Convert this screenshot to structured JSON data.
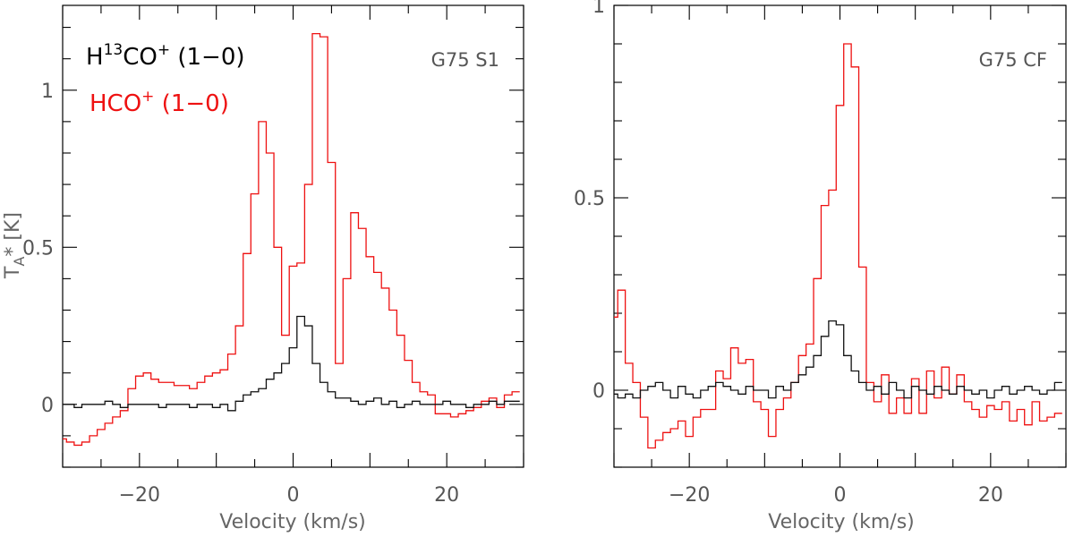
{
  "chart_data": [
    {
      "type": "line",
      "panel_label": "G75 S1",
      "xlabel": "Velocity (km/s)",
      "ylabel": "T",
      "ylabel_sub": "A",
      "ylabel_suffix": "* [K]",
      "xlim": [
        -30,
        30
      ],
      "ylim": [
        -0.2,
        1.27
      ],
      "xticks_major": [
        -20,
        0,
        20
      ],
      "xtick_labels": [
        "−20",
        "0",
        "20"
      ],
      "yticks_major": [
        0,
        0.5,
        1
      ],
      "ytick_labels": [
        "0",
        "0.5",
        "1"
      ],
      "legend": {
        "black_base": "H",
        "black_sup": "13",
        "black_mid": "CO",
        "black_sup2": "+",
        "black_tail": " (1−0)",
        "red_base": "HCO",
        "red_sup": "+",
        "red_tail": " (1−0)"
      },
      "series": [
        {
          "name": "HCO+ (1-0)",
          "color": "#ee1111",
          "style": "step",
          "x": [
            -30,
            -29,
            -28,
            -27,
            -26,
            -25,
            -24,
            -23,
            -22,
            -21,
            -20,
            -19,
            -18,
            -17,
            -16,
            -15,
            -14,
            -13,
            -12,
            -11,
            -10,
            -9,
            -8,
            -7,
            -6,
            -5,
            -4,
            -3,
            -2,
            -1,
            0,
            1,
            2,
            3,
            4,
            5,
            6,
            7,
            8,
            9,
            10,
            11,
            12,
            13,
            14,
            15,
            16,
            17,
            18,
            19,
            20,
            21,
            22,
            23,
            24,
            25,
            26,
            27,
            28,
            29
          ],
          "values": [
            -0.11,
            -0.12,
            -0.13,
            -0.12,
            -0.1,
            -0.08,
            -0.06,
            -0.04,
            -0.02,
            0.05,
            0.09,
            0.1,
            0.08,
            0.07,
            0.07,
            0.06,
            0.06,
            0.05,
            0.07,
            0.09,
            0.1,
            0.11,
            0.16,
            0.25,
            0.48,
            0.67,
            0.9,
            0.8,
            0.5,
            0.22,
            0.44,
            0.45,
            0.7,
            1.18,
            1.17,
            0.77,
            0.13,
            0.4,
            0.61,
            0.56,
            0.47,
            0.42,
            0.37,
            0.3,
            0.22,
            0.14,
            0.07,
            0.04,
            0.03,
            -0.03,
            -0.03,
            -0.04,
            -0.03,
            -0.02,
            -0.01,
            0.01,
            0.02,
            -0.01,
            0.03,
            0.04
          ]
        },
        {
          "name": "H13CO+ (1-0)",
          "color": "#111111",
          "style": "step",
          "x": [
            -30,
            -29,
            -28,
            -27,
            -26,
            -25,
            -24,
            -23,
            -22,
            -21,
            -20,
            -19,
            -18,
            -17,
            -16,
            -15,
            -14,
            -13,
            -12,
            -11,
            -10,
            -9,
            -8,
            -7,
            -6,
            -5,
            -4,
            -3,
            -2,
            -1,
            0,
            1,
            2,
            3,
            4,
            5,
            6,
            7,
            8,
            9,
            10,
            11,
            12,
            13,
            14,
            15,
            16,
            17,
            18,
            19,
            20,
            21,
            22,
            23,
            24,
            25,
            26,
            27,
            28,
            29
          ],
          "values": [
            0.0,
            0.0,
            -0.01,
            0.0,
            0.0,
            0.0,
            0.01,
            0.0,
            -0.01,
            0.0,
            0.0,
            0.0,
            0.0,
            -0.01,
            0.0,
            0.0,
            0.0,
            -0.01,
            0.0,
            0.0,
            -0.01,
            0.0,
            -0.02,
            0.01,
            0.03,
            0.04,
            0.05,
            0.08,
            0.1,
            0.13,
            0.18,
            0.28,
            0.25,
            0.13,
            0.07,
            0.04,
            0.02,
            0.02,
            0.01,
            0.0,
            0.01,
            0.02,
            0.0,
            0.01,
            -0.01,
            0.0,
            0.01,
            0.0,
            0.0,
            0.0,
            0.01,
            0.0,
            0.0,
            -0.01,
            0.0,
            0.0,
            0.01,
            0.0,
            0.01,
            0.01
          ]
        }
      ]
    },
    {
      "type": "line",
      "panel_label": "G75 CF",
      "xlabel": "Velocity (km/s)",
      "xlim": [
        -30,
        30
      ],
      "ylim": [
        -0.2,
        1.0
      ],
      "xticks_major": [
        -20,
        0,
        20
      ],
      "xtick_labels": [
        "−20",
        "0",
        "20"
      ],
      "yticks_major": [
        0,
        0.5,
        1
      ],
      "ytick_labels": [
        "0",
        "0.5",
        "1"
      ],
      "series": [
        {
          "name": "HCO+ (1-0)",
          "color": "#ee1111",
          "style": "step",
          "x": [
            -30,
            -29,
            -28,
            -27,
            -26,
            -25,
            -24,
            -23,
            -22,
            -21,
            -20,
            -19,
            -18,
            -17,
            -16,
            -15,
            -14,
            -13,
            -12,
            -11,
            -10,
            -9,
            -8,
            -7,
            -6,
            -5,
            -4,
            -3,
            -2,
            -1,
            0,
            1,
            2,
            3,
            4,
            5,
            6,
            7,
            8,
            9,
            10,
            11,
            12,
            13,
            14,
            15,
            16,
            17,
            18,
            19,
            20,
            21,
            22,
            23,
            24,
            25,
            26,
            27,
            28,
            29
          ],
          "values": [
            0.19,
            0.26,
            0.07,
            0.02,
            -0.07,
            -0.15,
            -0.13,
            -0.11,
            -0.1,
            -0.08,
            -0.12,
            -0.07,
            -0.05,
            -0.05,
            0.05,
            0.03,
            0.11,
            0.07,
            0.08,
            -0.03,
            -0.05,
            -0.12,
            -0.05,
            -0.02,
            0.02,
            0.09,
            0.12,
            0.29,
            0.48,
            0.52,
            0.74,
            0.9,
            0.84,
            0.32,
            0.02,
            -0.03,
            0.04,
            -0.06,
            -0.02,
            -0.06,
            0.03,
            -0.06,
            0.05,
            -0.02,
            0.06,
            -0.01,
            0.04,
            -0.03,
            -0.05,
            -0.07,
            -0.04,
            -0.05,
            -0.03,
            -0.08,
            -0.05,
            -0.09,
            -0.03,
            -0.08,
            -0.07,
            -0.06
          ]
        },
        {
          "name": "H13CO+ (1-0)",
          "color": "#111111",
          "style": "step",
          "x": [
            -30,
            -29,
            -28,
            -27,
            -26,
            -25,
            -24,
            -23,
            -22,
            -21,
            -20,
            -19,
            -18,
            -17,
            -16,
            -15,
            -14,
            -13,
            -12,
            -11,
            -10,
            -9,
            -8,
            -7,
            -6,
            -5,
            -4,
            -3,
            -2,
            -1,
            0,
            1,
            2,
            3,
            4,
            5,
            6,
            7,
            8,
            9,
            10,
            11,
            12,
            13,
            14,
            15,
            16,
            17,
            18,
            19,
            20,
            21,
            22,
            23,
            24,
            25,
            26,
            27,
            28,
            29
          ],
          "values": [
            -0.01,
            -0.02,
            -0.01,
            -0.02,
            0.0,
            0.01,
            0.02,
            0.0,
            -0.02,
            0.01,
            -0.01,
            -0.02,
            0.0,
            0.01,
            0.02,
            0.01,
            0.0,
            -0.01,
            0.01,
            0.0,
            0.0,
            -0.02,
            0.01,
            0.0,
            0.02,
            0.04,
            0.06,
            0.09,
            0.14,
            0.18,
            0.17,
            0.09,
            0.05,
            0.02,
            0.0,
            0.01,
            -0.01,
            0.02,
            0.0,
            -0.02,
            0.01,
            0.0,
            -0.01,
            0.01,
            0.0,
            -0.01,
            0.01,
            0.0,
            -0.01,
            0.0,
            -0.02,
            0.0,
            0.01,
            -0.01,
            0.0,
            0.01,
            0.0,
            -0.01,
            0.0,
            0.02
          ]
        }
      ]
    }
  ]
}
